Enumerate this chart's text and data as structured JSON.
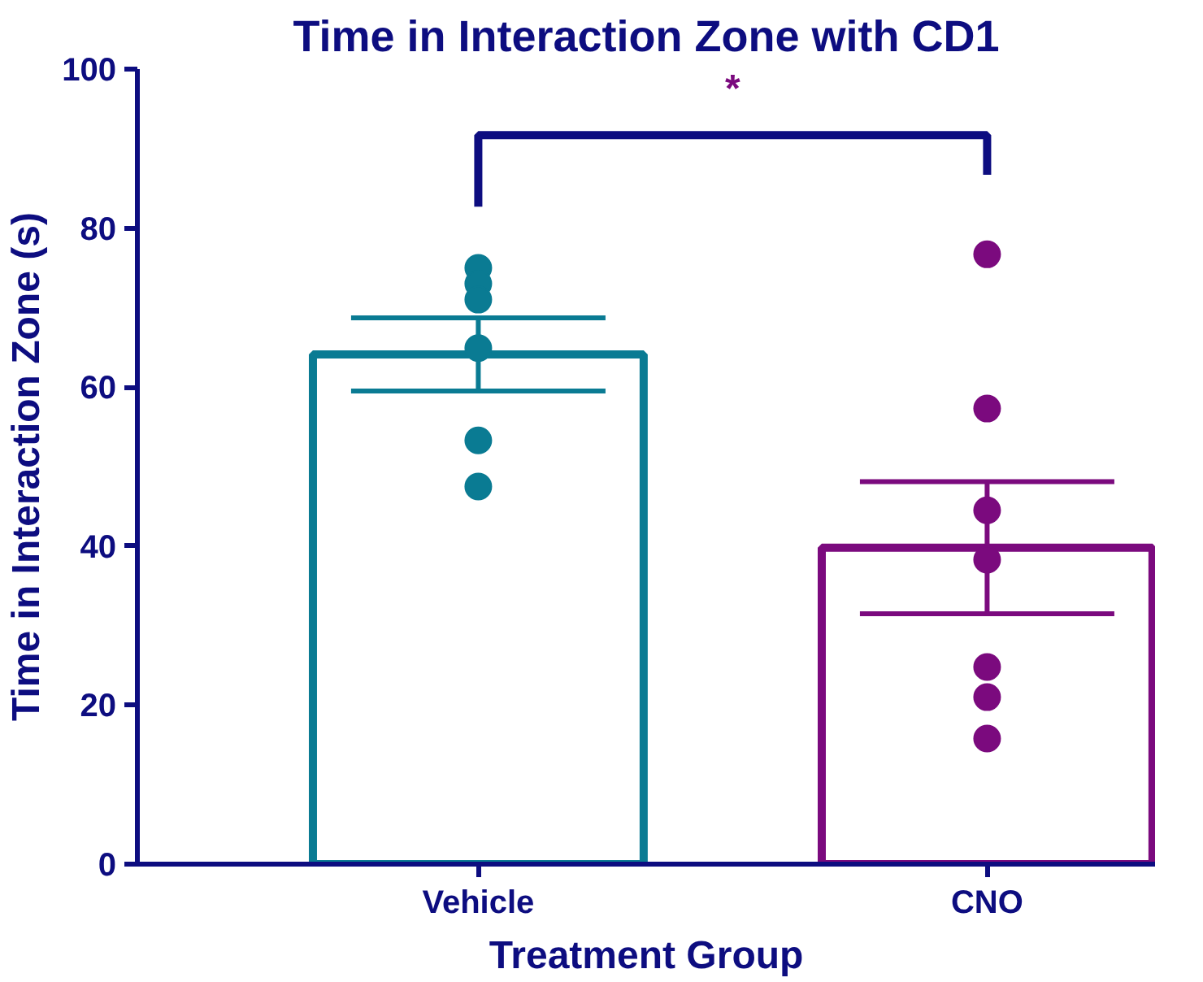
{
  "chart_data": {
    "type": "bar",
    "title": "Time in Interaction Zone with CD1",
    "xlabel": "Treatment Group",
    "ylabel": "Time in Interaction Zone (s)",
    "categories": [
      "Vehicle",
      "CNO"
    ],
    "series": [
      {
        "values": [
          64.1,
          39.8
        ],
        "colors": [
          "#0a7b93",
          "#7b0a7e"
        ],
        "errors": [
          4.6,
          8.3
        ]
      },
      {
        "type": "scatter",
        "x": [
          "Vehicle",
          "Vehicle",
          "Vehicle",
          "Vehicle",
          "Vehicle",
          "Vehicle"
        ],
        "values": [
          75.0,
          73.0,
          71.0,
          64.9,
          53.3,
          47.5
        ],
        "color": "#0a7b93"
      },
      {
        "type": "scatter",
        "x": [
          "CNO",
          "CNO",
          "CNO",
          "CNO",
          "CNO",
          "CNO",
          "CNO"
        ],
        "values": [
          76.7,
          57.3,
          44.5,
          38.3,
          24.8,
          21.0,
          15.8
        ],
        "color": "#7b0a7e"
      }
    ],
    "ylim": [
      0,
      100
    ],
    "yticks": [
      0,
      20,
      40,
      60,
      80,
      100
    ],
    "grid": false,
    "marker": "circle",
    "annotations": [
      "*"
    ]
  }
}
